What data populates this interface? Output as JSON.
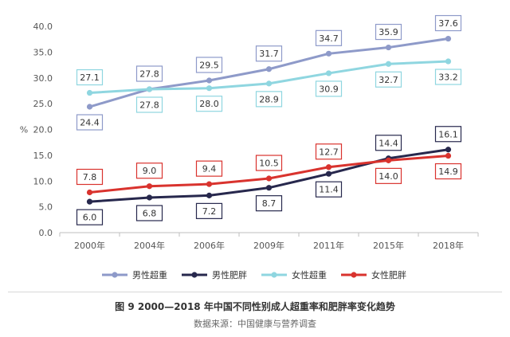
{
  "figure": {
    "caption": "图 9   2000—2018 年中国不同性别成人超重率和肥胖率变化趋势",
    "source": "数据来源：中国健康与营养调查"
  },
  "chart_data": {
    "type": "line",
    "title": "",
    "xlabel": "",
    "ylabel": "%",
    "ylim": [
      0,
      40
    ],
    "yticks": [
      "0.0",
      "5.0",
      "10.0",
      "15.0",
      "20.0",
      "25.0",
      "30.0",
      "35.0",
      "40.0"
    ],
    "categories": [
      "2000年",
      "2004年",
      "2006年",
      "2009年",
      "2011年",
      "2015年",
      "2018年"
    ],
    "grid": false,
    "legend_position": "bottom",
    "series": [
      {
        "name": "男性超重",
        "color": "#8e9ac9",
        "values": [
          24.4,
          27.8,
          29.5,
          31.7,
          34.7,
          35.9,
          37.6
        ],
        "labels": [
          "24.4",
          "27.8",
          "29.5",
          "31.7",
          "34.7",
          "35.9",
          "37.6"
        ],
        "label_side": [
          "below",
          "above",
          "above",
          "above",
          "above",
          "above",
          "above"
        ]
      },
      {
        "name": "男性肥胖",
        "color": "#27284d",
        "values": [
          6.0,
          6.8,
          7.2,
          8.7,
          11.4,
          14.4,
          16.1
        ],
        "labels": [
          "6.0",
          "6.8",
          "7.2",
          "8.7",
          "11.4",
          "14.4",
          "16.1"
        ],
        "label_side": [
          "below",
          "below",
          "below",
          "below",
          "below",
          "above",
          "above"
        ]
      },
      {
        "name": "女性超重",
        "color": "#8fd6e0",
        "values": [
          27.1,
          27.8,
          28.0,
          28.9,
          30.9,
          32.7,
          33.2
        ],
        "labels": [
          "27.1",
          "27.8",
          "28.0",
          "28.9",
          "30.9",
          "32.7",
          "33.2"
        ],
        "label_side": [
          "above",
          "below",
          "below",
          "below",
          "below",
          "below",
          "below"
        ]
      },
      {
        "name": "女性肥胖",
        "color": "#d9332e",
        "values": [
          7.8,
          9.0,
          9.4,
          10.5,
          12.7,
          14.0,
          14.9
        ],
        "labels": [
          "7.8",
          "9.0",
          "9.4",
          "10.5",
          "12.7",
          "14.0",
          "14.9"
        ],
        "label_side": [
          "above",
          "above",
          "above",
          "above",
          "above",
          "below",
          "below"
        ]
      }
    ]
  }
}
